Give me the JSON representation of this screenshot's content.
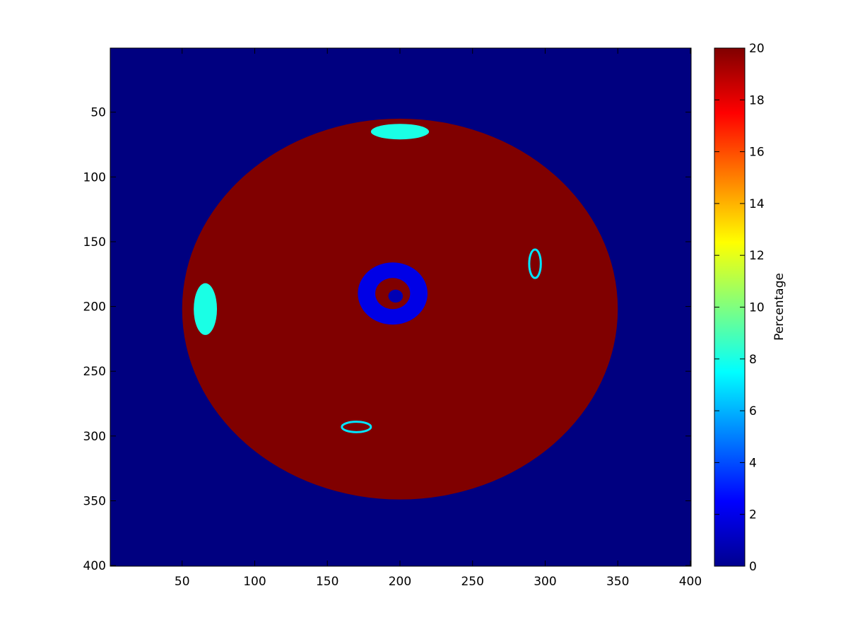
{
  "chart_data": {
    "type": "heatmap",
    "title": "",
    "xlabel": "",
    "ylabel": "",
    "xlim": [
      0.5,
      400.5
    ],
    "ylim": [
      0.5,
      400.5
    ],
    "y_reversed": true,
    "x_ticks": [
      50,
      100,
      150,
      200,
      250,
      300,
      350,
      400
    ],
    "y_ticks": [
      50,
      100,
      150,
      200,
      250,
      300,
      350,
      400
    ],
    "colormap": "jet",
    "clim": [
      0,
      20
    ],
    "colorbar": {
      "label": "Percentage",
      "ticks": [
        0,
        2,
        4,
        6,
        8,
        10,
        12,
        14,
        16,
        18,
        20
      ]
    },
    "background_value": 0,
    "regions": [
      {
        "name": "disc",
        "shape": "ellipse",
        "cx": 200,
        "cy": 202,
        "rx": 150,
        "ry": 147,
        "value": 20
      },
      {
        "name": "central-ring",
        "shape": "ring",
        "cx": 195,
        "cy": 190,
        "r_outer": 24,
        "r_inner": 12,
        "value": 2
      },
      {
        "name": "inner-notch",
        "shape": "ellipse",
        "cx": 197,
        "cy": 192,
        "rx": 5,
        "ry": 5,
        "value": 1
      },
      {
        "name": "right-spot",
        "shape": "ellipse",
        "cx": 293,
        "cy": 167,
        "rx": 4,
        "ry": 11,
        "value": 20,
        "rim_value": 7
      },
      {
        "name": "bottom-spot",
        "shape": "ellipse",
        "cx": 170,
        "cy": 293,
        "rx": 10,
        "ry": 4,
        "value": 20,
        "rim_value": 7
      },
      {
        "name": "left-edge-band",
        "shape": "ellipse",
        "cx": 66,
        "cy": 202,
        "rx": 8,
        "ry": 20,
        "value": 8
      },
      {
        "name": "top-edge-band",
        "shape": "ellipse",
        "cx": 200,
        "cy": 65,
        "rx": 20,
        "ry": 6,
        "value": 8
      }
    ]
  }
}
